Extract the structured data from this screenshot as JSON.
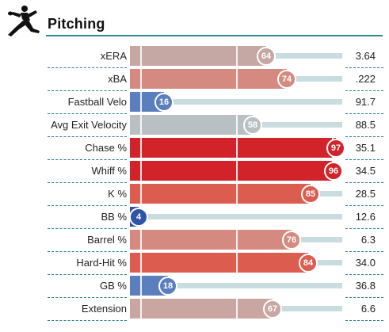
{
  "header": {
    "title": "Pitching",
    "icon": "pitcher-icon"
  },
  "colors": {
    "accent_rule": "#2e8b8e",
    "track": "#c9dde0",
    "dashes": "#2f7f8c"
  },
  "stats": [
    {
      "label": "xERA",
      "percentile": 64,
      "value": "3.64",
      "color": "#c5a7a3"
    },
    {
      "label": "xBA",
      "percentile": 74,
      "value": ".222",
      "color": "#d48a80"
    },
    {
      "label": "Fastball Velo",
      "percentile": 16,
      "value": "91.7",
      "color": "#5a7fbc"
    },
    {
      "label": "Avg Exit Velocity",
      "percentile": 58,
      "value": "88.5",
      "color": "#b9c0c4"
    },
    {
      "label": "Chase %",
      "percentile": 97,
      "value": "35.1",
      "color": "#d2232a"
    },
    {
      "label": "Whiff %",
      "percentile": 96,
      "value": "34.5",
      "color": "#d2232a"
    },
    {
      "label": "K %",
      "percentile": 85,
      "value": "28.5",
      "color": "#dc5c50"
    },
    {
      "label": "BB %",
      "percentile": 4,
      "value": "12.6",
      "color": "#2f55a5"
    },
    {
      "label": "Barrel %",
      "percentile": 76,
      "value": "6.3",
      "color": "#d48a80"
    },
    {
      "label": "Hard-Hit %",
      "percentile": 84,
      "value": "34.0",
      "color": "#dc5c50"
    },
    {
      "label": "GB %",
      "percentile": 18,
      "value": "36.8",
      "color": "#5a7fbc"
    },
    {
      "label": "Extension",
      "percentile": 67,
      "value": "6.6",
      "color": "#c9a6a2"
    }
  ]
}
